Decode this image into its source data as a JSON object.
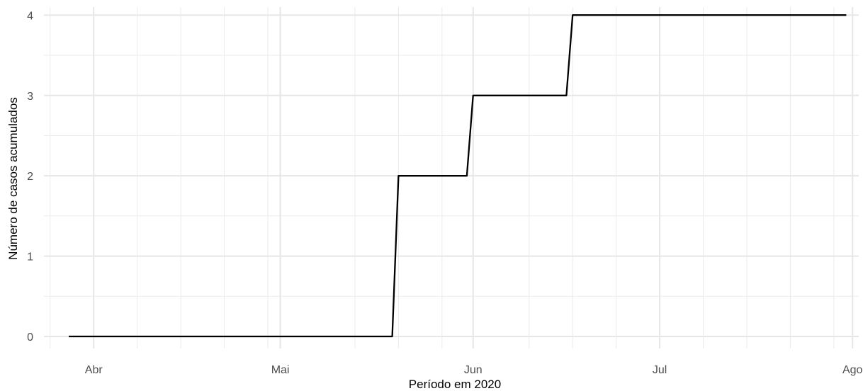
{
  "chart_data": {
    "type": "line",
    "line_style": "step",
    "title": "",
    "xlabel": "Período em 2020",
    "ylabel": "Número de casos acumulados",
    "x_type": "date",
    "xlim": [
      "2020-03-24",
      "2020-08-02"
    ],
    "ylim": [
      -0.15,
      4.1
    ],
    "x_ticks": [
      {
        "date": "2020-04-01",
        "label": "Abr"
      },
      {
        "date": "2020-05-01",
        "label": "Mai"
      },
      {
        "date": "2020-06-01",
        "label": "Jun"
      },
      {
        "date": "2020-07-01",
        "label": "Jul"
      },
      {
        "date": "2020-08-01",
        "label": "Ago"
      }
    ],
    "x_minor_ticks": [
      "2020-03-25",
      "2020-04-08",
      "2020-04-15",
      "2020-04-22",
      "2020-04-29",
      "2020-05-13",
      "2020-05-20",
      "2020-05-27",
      "2020-06-10",
      "2020-06-17",
      "2020-06-24",
      "2020-07-08",
      "2020-07-15",
      "2020-07-22",
      "2020-07-29"
    ],
    "y_ticks": [
      0,
      1,
      2,
      3,
      4
    ],
    "y_minor_ticks": [
      0.5,
      1.5,
      2.5,
      3.5
    ],
    "grid": true,
    "series": [
      {
        "color": "#000000",
        "points": [
          {
            "x": "2020-03-28",
            "y": 0
          },
          {
            "x": "2020-05-19",
            "y": 0
          },
          {
            "x": "2020-05-20",
            "y": 2
          },
          {
            "x": "2020-05-31",
            "y": 2
          },
          {
            "x": "2020-06-01",
            "y": 3
          },
          {
            "x": "2020-06-16",
            "y": 3
          },
          {
            "x": "2020-06-17",
            "y": 4
          },
          {
            "x": "2020-07-31",
            "y": 4
          }
        ]
      }
    ]
  }
}
